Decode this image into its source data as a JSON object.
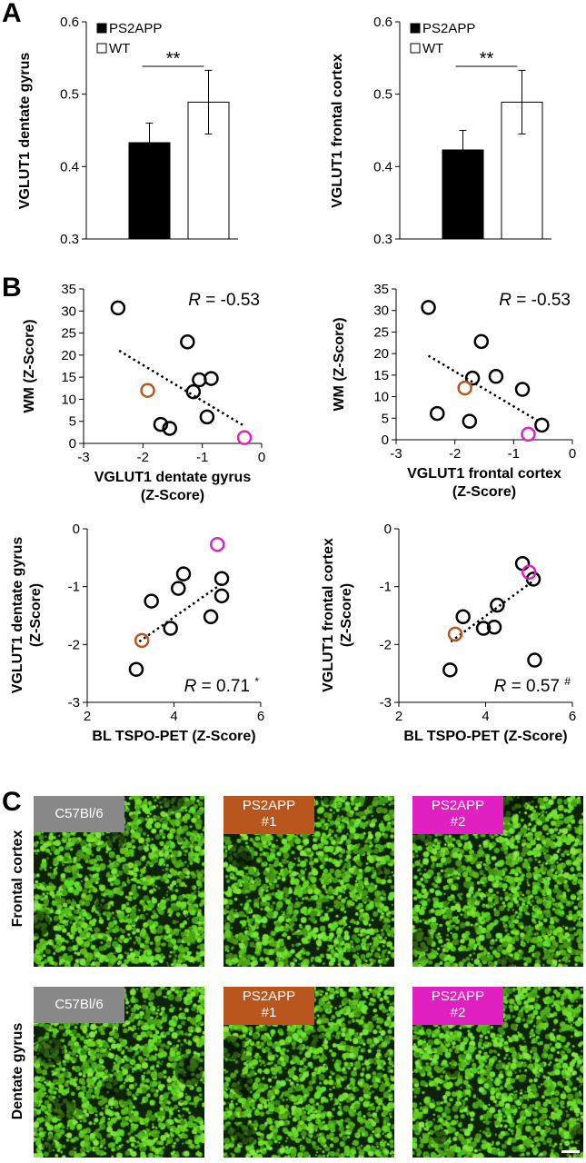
{
  "panels": {
    "a": "A",
    "b": "B",
    "c": "C"
  },
  "colors": {
    "ps2app_1": "#b8561e",
    "ps2app_2": "#e020c0",
    "c57": "#888888",
    "stain": "#59c21c"
  },
  "chart_data": [
    {
      "type": "bar",
      "id": "bar-dg",
      "categories": [
        "PS2APP",
        "WT"
      ],
      "values": [
        0.433,
        0.489
      ],
      "errors": [
        0.027,
        0.044
      ],
      "ylabel": "VGLUT1 dentate gyrus",
      "ylim": [
        0.3,
        0.6
      ],
      "yticks": [
        "0.3",
        "0.4",
        "0.5",
        "0.6"
      ],
      "legend": [
        "PS2APP",
        "WT"
      ],
      "significance": "**"
    },
    {
      "type": "bar",
      "id": "bar-fc",
      "categories": [
        "PS2APP",
        "WT"
      ],
      "values": [
        0.423,
        0.489
      ],
      "errors": [
        0.027,
        0.044
      ],
      "ylabel": "VGLUT1 frontal cortex",
      "ylim": [
        0.3,
        0.6
      ],
      "yticks": [
        "0.3",
        "0.4",
        "0.5",
        "0.6"
      ],
      "legend": [
        "PS2APP",
        "WT"
      ],
      "significance": "**"
    },
    {
      "type": "scatter",
      "id": "sc-wm-dg",
      "xlabel": [
        "VGLUT1 dentate gyrus",
        "(Z-Score)"
      ],
      "ylabel": "WM (Z-Score)",
      "xlim": [
        -3,
        0
      ],
      "ylim": [
        0,
        35
      ],
      "xticks": [
        "-3",
        "-2",
        "-1",
        "0"
      ],
      "yticks": [
        "0",
        "5",
        "10",
        "15",
        "20",
        "25",
        "30",
        "35"
      ],
      "r_label": "R",
      "r_value": " = -0.53",
      "r_suffix": "",
      "trend": [
        [
          -2.4,
          21
        ],
        [
          -0.3,
          4
        ]
      ],
      "points": [
        {
          "x": -2.42,
          "y": 30.7,
          "group": "other"
        },
        {
          "x": -1.25,
          "y": 23.0,
          "group": "other"
        },
        {
          "x": -1.05,
          "y": 14.4,
          "group": "other"
        },
        {
          "x": -0.85,
          "y": 14.7,
          "group": "other"
        },
        {
          "x": -1.15,
          "y": 11.7,
          "group": "other"
        },
        {
          "x": -0.92,
          "y": 6.0,
          "group": "other"
        },
        {
          "x": -1.7,
          "y": 4.3,
          "group": "other"
        },
        {
          "x": -1.55,
          "y": 3.4,
          "group": "other"
        },
        {
          "x": -1.92,
          "y": 12.0,
          "group": "ps2app_1"
        },
        {
          "x": -0.29,
          "y": 1.3,
          "group": "ps2app_2"
        }
      ]
    },
    {
      "type": "scatter",
      "id": "sc-wm-fc",
      "xlabel": [
        "VGLUT1 frontal cortex",
        "(Z-Score)"
      ],
      "ylabel": "WM (Z-Score)",
      "xlim": [
        -3,
        0
      ],
      "ylim": [
        0,
        35
      ],
      "xticks": [
        "-3",
        "-2",
        "-1",
        "0"
      ],
      "yticks": [
        "0",
        "5",
        "10",
        "15",
        "20",
        "25",
        "30",
        "35"
      ],
      "r_label": "R",
      "r_value": " = -0.53",
      "r_suffix": "",
      "trend": [
        [
          -2.45,
          19.5
        ],
        [
          -0.6,
          4.5
        ]
      ],
      "points": [
        {
          "x": -2.45,
          "y": 30.7,
          "group": "other"
        },
        {
          "x": -1.55,
          "y": 22.8,
          "group": "other"
        },
        {
          "x": -1.7,
          "y": 14.3,
          "group": "other"
        },
        {
          "x": -1.3,
          "y": 14.7,
          "group": "other"
        },
        {
          "x": -0.85,
          "y": 11.7,
          "group": "other"
        },
        {
          "x": -2.3,
          "y": 6.1,
          "group": "other"
        },
        {
          "x": -1.75,
          "y": 4.3,
          "group": "other"
        },
        {
          "x": -0.52,
          "y": 3.4,
          "group": "other"
        },
        {
          "x": -1.83,
          "y": 12.0,
          "group": "ps2app_1"
        },
        {
          "x": -0.75,
          "y": 1.3,
          "group": "ps2app_2"
        }
      ]
    },
    {
      "type": "scatter",
      "id": "sc-dg-tspo",
      "xlabel": [
        "BL TSPO-PET (Z-Score)"
      ],
      "ylabel": [
        "VGLUT1 dentate gyrus",
        "(Z-Score)"
      ],
      "xlim": [
        2,
        6
      ],
      "ylim": [
        -3,
        0
      ],
      "xticks": [
        "2",
        "4",
        "6"
      ],
      "yticks": [
        "-3",
        "-2",
        "-1",
        "0"
      ],
      "r_label": "R",
      "r_value": " = 0.71 ",
      "r_suffix": "*",
      "trend": [
        [
          3.2,
          -1.95
        ],
        [
          5.1,
          -0.95
        ]
      ],
      "points": [
        {
          "x": 4.22,
          "y": -0.78,
          "group": "other"
        },
        {
          "x": 5.1,
          "y": -0.86,
          "group": "other"
        },
        {
          "x": 4.1,
          "y": -1.03,
          "group": "other"
        },
        {
          "x": 5.1,
          "y": -1.16,
          "group": "other"
        },
        {
          "x": 3.48,
          "y": -1.25,
          "group": "other"
        },
        {
          "x": 4.85,
          "y": -1.52,
          "group": "other"
        },
        {
          "x": 3.92,
          "y": -1.72,
          "group": "other"
        },
        {
          "x": 3.13,
          "y": -2.43,
          "group": "other"
        },
        {
          "x": 3.26,
          "y": -1.93,
          "group": "ps2app_1"
        },
        {
          "x": 5.0,
          "y": -0.27,
          "group": "ps2app_2"
        }
      ]
    },
    {
      "type": "scatter",
      "id": "sc-fc-tspo",
      "xlabel": [
        "BL TSPO-PET (Z-Score)"
      ],
      "ylabel": [
        "VGLUT1 frontal cortex",
        "(Z-Score)"
      ],
      "xlim": [
        2,
        6
      ],
      "ylim": [
        -3,
        0
      ],
      "xticks": [
        "2",
        "4",
        "6"
      ],
      "yticks": [
        "-3",
        "-2",
        "-1",
        "0"
      ],
      "r_label": "R",
      "r_value": " = 0.57 ",
      "r_suffix": "#",
      "trend": [
        [
          3.2,
          -1.95
        ],
        [
          5.1,
          -0.9
        ]
      ],
      "points": [
        {
          "x": 4.85,
          "y": -0.6,
          "group": "other"
        },
        {
          "x": 5.1,
          "y": -0.87,
          "group": "other"
        },
        {
          "x": 4.27,
          "y": -1.32,
          "group": "other"
        },
        {
          "x": 3.48,
          "y": -1.52,
          "group": "other"
        },
        {
          "x": 4.2,
          "y": -1.7,
          "group": "other"
        },
        {
          "x": 3.95,
          "y": -1.72,
          "group": "other"
        },
        {
          "x": 5.13,
          "y": -2.27,
          "group": "other"
        },
        {
          "x": 3.18,
          "y": -2.44,
          "group": "other"
        },
        {
          "x": 3.3,
          "y": -1.82,
          "group": "ps2app_1"
        },
        {
          "x": 5.0,
          "y": -0.75,
          "group": "ps2app_2"
        }
      ]
    }
  ],
  "micrographs": {
    "row_labels": [
      "Frontal cortex",
      "Dentate gyrus"
    ],
    "tags": [
      {
        "lines": [
          "C57Bl/6"
        ],
        "color": "c57"
      },
      {
        "lines": [
          "PS2APP",
          "#1"
        ],
        "color": "ps2app_1"
      },
      {
        "lines": [
          "PS2APP",
          "#2"
        ],
        "color": "ps2app_2"
      }
    ]
  }
}
